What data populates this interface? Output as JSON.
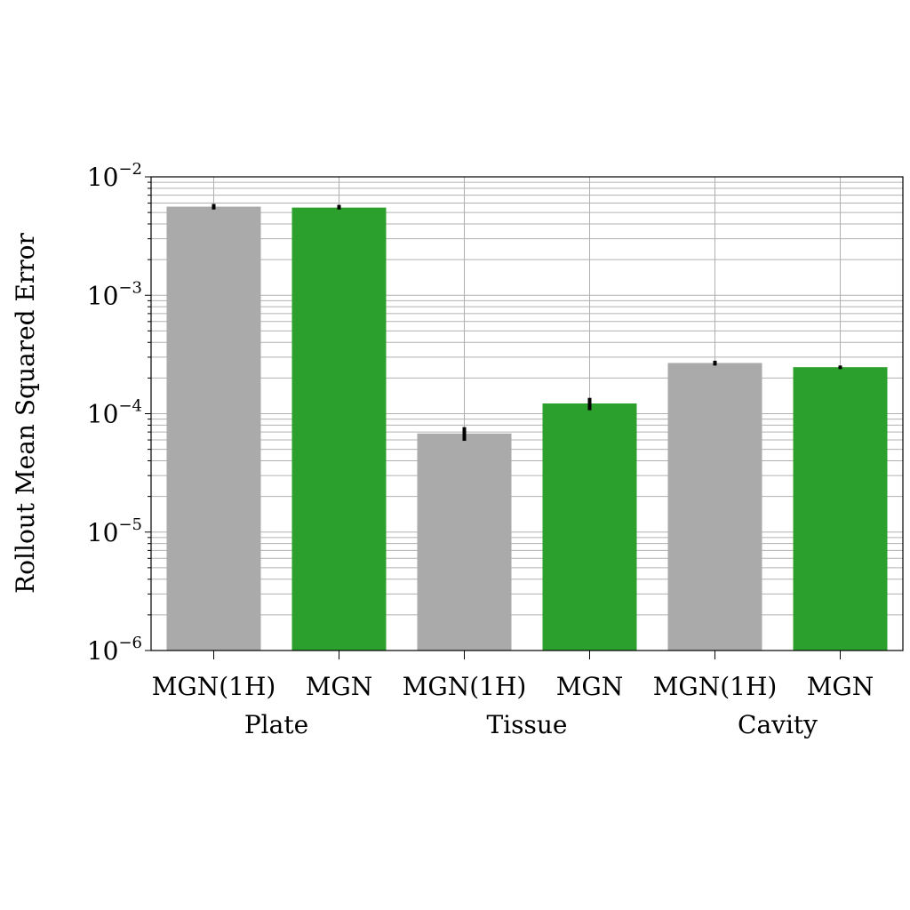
{
  "chart_data": {
    "type": "bar",
    "ylabel": "Rollout Mean Squared Error",
    "yscale": "log",
    "ylim": [
      1e-06,
      0.01
    ],
    "grid": true,
    "y_ticks": [
      {
        "value": 1e-06,
        "base": "10",
        "exp": "−6"
      },
      {
        "value": 1e-05,
        "base": "10",
        "exp": "−5"
      },
      {
        "value": 0.0001,
        "base": "10",
        "exp": "−4"
      },
      {
        "value": 0.001,
        "base": "10",
        "exp": "−3"
      },
      {
        "value": 0.01,
        "base": "10",
        "exp": "−2"
      }
    ],
    "groups": [
      {
        "label": "Plate",
        "bars": [
          {
            "label": "MGN(1H)",
            "value": 0.0056,
            "err_low": 0.0053,
            "err_high": 0.0059,
            "color": "#aaaaaa"
          },
          {
            "label": "MGN",
            "value": 0.0055,
            "err_low": 0.0053,
            "err_high": 0.0058,
            "color": "#2ca02c"
          }
        ]
      },
      {
        "label": "Tissue",
        "bars": [
          {
            "label": "MGN(1H)",
            "value": 6.8e-05,
            "err_low": 5.9e-05,
            "err_high": 7.7e-05,
            "color": "#aaaaaa"
          },
          {
            "label": "MGN",
            "value": 0.000122,
            "err_low": 0.000107,
            "err_high": 0.000136,
            "color": "#2ca02c"
          }
        ]
      },
      {
        "label": "Cavity",
        "bars": [
          {
            "label": "MGN(1H)",
            "value": 0.000268,
            "err_low": 0.000255,
            "err_high": 0.00028,
            "color": "#aaaaaa"
          },
          {
            "label": "MGN",
            "value": 0.000247,
            "err_low": 0.000238,
            "err_high": 0.000255,
            "color": "#2ca02c"
          }
        ]
      }
    ]
  }
}
